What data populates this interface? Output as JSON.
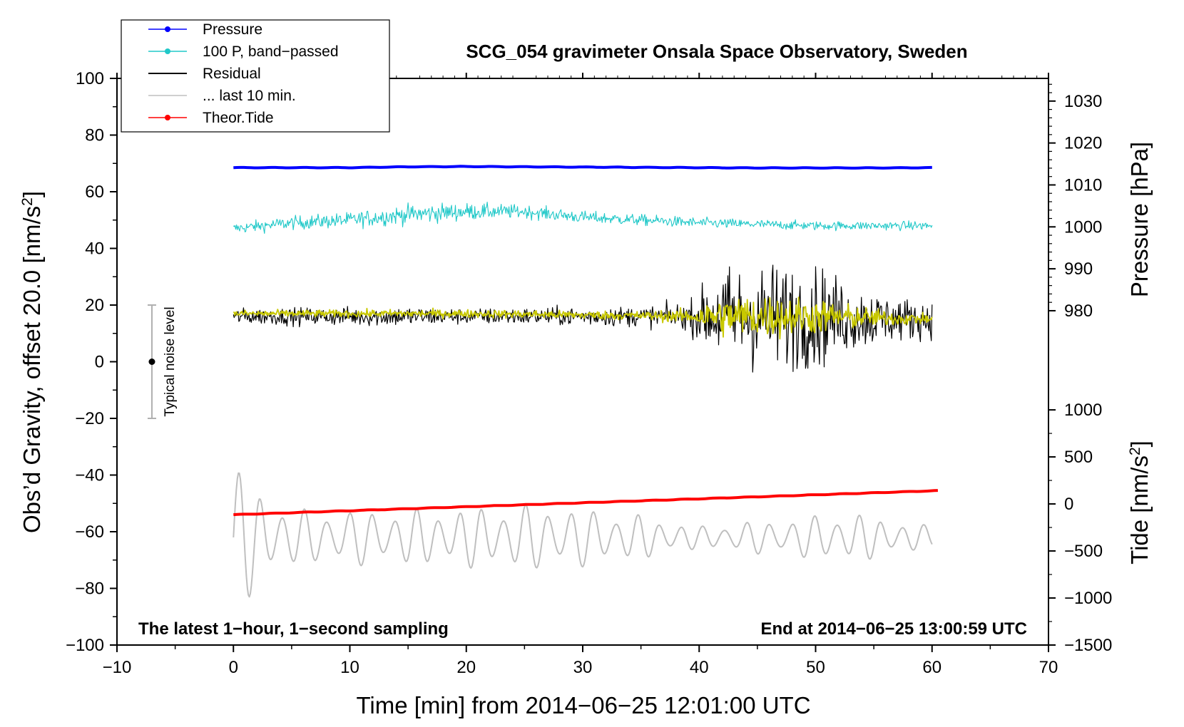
{
  "chart_data": {
    "type": "line",
    "title": "SCG_054 gravimeter Onsala Space Observatory, Sweden",
    "xlabel": "Time [min] from 2014−06−25 12:01:00 UTC",
    "ylabel_left": "Obs’d Gravity, offset 20.0 [nm/s",
    "ylabel_left_sup": "2",
    "ylabel_left_close": "]",
    "ylabel_right_top": "Pressure [hPa]",
    "ylabel_right_bottom": "Tide [nm/s",
    "ylabel_right_bottom_sup": "2",
    "ylabel_right_bottom_close": "]",
    "xlim": [
      -10,
      70
    ],
    "ylim": [
      -100,
      100
    ],
    "x_ticks": [
      -10,
      0,
      10,
      20,
      30,
      40,
      50,
      60,
      70
    ],
    "x_tick_labels": [
      "−10",
      "0",
      "10",
      "20",
      "30",
      "40",
      "50",
      "60",
      "70"
    ],
    "y_ticks": [
      -100,
      -80,
      -60,
      -40,
      -20,
      0,
      20,
      40,
      60,
      80,
      100
    ],
    "y_tick_labels": [
      "−100",
      "−80",
      "−60",
      "−40",
      "−20",
      "0",
      "20",
      "40",
      "60",
      "80",
      "100"
    ],
    "pressure_axis": {
      "ticks": [
        980,
        990,
        1000,
        1010,
        1020,
        1030
      ],
      "tick_labels": [
        "980",
        "990",
        "1000",
        "1010",
        "1020",
        "1030"
      ],
      "calibration": {
        "hpa": [
          980,
          1030
        ],
        "gravity": [
          18,
          92
        ]
      }
    },
    "tide_axis": {
      "ticks": [
        -1500,
        -1000,
        -500,
        0,
        500,
        1000
      ],
      "tick_labels": [
        "−1500",
        "−1000",
        "−500",
        "0",
        "500",
        "1000"
      ],
      "calibration": {
        "tide": [
          -1500,
          1000
        ],
        "gravity": [
          -100,
          -17
        ]
      }
    },
    "legend": {
      "placement": "top-left",
      "entries": [
        {
          "label": "Pressure",
          "color": "#0000ff",
          "marker": "dot"
        },
        {
          "label": "100 P, band−passed",
          "color": "#20c8c8",
          "marker": "dot"
        },
        {
          "label": "Residual",
          "color": "#000000",
          "marker": "none"
        },
        {
          "label": "... last 10 min.",
          "color": "#bfbfbf",
          "marker": "none"
        },
        {
          "label": "Theor.Tide",
          "color": "#ff0000",
          "marker": "dot"
        }
      ]
    },
    "noise_bar": {
      "label": "Typical noise level",
      "x": -7,
      "center": 0,
      "low": -20,
      "high": 20
    },
    "note_left": "The latest 1−hour, 1−second sampling",
    "note_right": "End at 2014−06−25 13:00:59 UTC",
    "series": [
      {
        "name": "Pressure",
        "color": "#0000ff",
        "style": "thick",
        "x": [
          0,
          10,
          15,
          20,
          25,
          30,
          35,
          40,
          45,
          50,
          55,
          60
        ],
        "y": [
          68.5,
          68.5,
          68.8,
          68.9,
          68.8,
          68.7,
          68.6,
          68.5,
          68.4,
          68.4,
          68.4,
          68.5
        ]
      },
      {
        "name": "100 P, band−passed",
        "color": "#20c8c8",
        "style": "noisy",
        "x": [
          0,
          5,
          10,
          15,
          20,
          25,
          30,
          35,
          40,
          45,
          50,
          55,
          60
        ],
        "y": [
          47,
          49,
          50,
          52,
          53,
          53,
          51,
          50,
          49,
          48.5,
          48,
          48,
          48
        ],
        "noise": [
          [
            0,
            2.5
          ],
          [
            10,
            3.5
          ],
          [
            16,
            4.5
          ],
          [
            25,
            3
          ],
          [
            35,
            2.5
          ],
          [
            50,
            2
          ],
          [
            60,
            2
          ]
        ]
      },
      {
        "name": "Residual",
        "color": "#000000",
        "style": "noisy",
        "x": [
          0,
          10,
          20,
          30,
          35,
          40,
          45,
          50,
          55,
          60
        ],
        "y": [
          16,
          16,
          16,
          16,
          16,
          16,
          16,
          16,
          15,
          15
        ],
        "noise": [
          [
            0,
            3.5
          ],
          [
            15,
            4.5
          ],
          [
            20,
            3.5
          ],
          [
            35,
            4.5
          ],
          [
            39,
            6
          ],
          [
            42,
            22
          ],
          [
            46,
            24
          ],
          [
            50,
            23
          ],
          [
            53,
            15
          ],
          [
            57,
            10
          ],
          [
            60,
            8
          ]
        ]
      },
      {
        "name": "Residual smoothed",
        "color": "#c8c800",
        "style": "noisy",
        "x": [
          0,
          20,
          40,
          50,
          60
        ],
        "y": [
          17,
          17,
          16,
          16,
          15
        ],
        "noise": [
          [
            0,
            1.5
          ],
          [
            35,
            2
          ],
          [
            39,
            3
          ],
          [
            42,
            9
          ],
          [
            46,
            10
          ],
          [
            50,
            8
          ],
          [
            55,
            4
          ],
          [
            60,
            2
          ]
        ]
      },
      {
        "name": "... last 10 min.",
        "color": "#bfbfbf",
        "style": "oscillation",
        "x": [
          0,
          60
        ],
        "y": [
          -62,
          -62
        ],
        "x_range": [
          0,
          60
        ],
        "center": -62,
        "amplitude": [
          [
            0,
            28
          ],
          [
            2,
            18
          ],
          [
            5,
            10
          ],
          [
            15,
            10
          ],
          [
            27,
            12
          ],
          [
            35,
            8
          ],
          [
            40,
            4
          ],
          [
            45,
            6
          ],
          [
            53,
            9
          ],
          [
            60,
            4
          ]
        ],
        "period_min": 1.9
      },
      {
        "name": "Theor.Tide",
        "color": "#ff0000",
        "style": "thick",
        "x": [
          0,
          60.5
        ],
        "y": [
          -54,
          -45.5
        ]
      }
    ]
  }
}
